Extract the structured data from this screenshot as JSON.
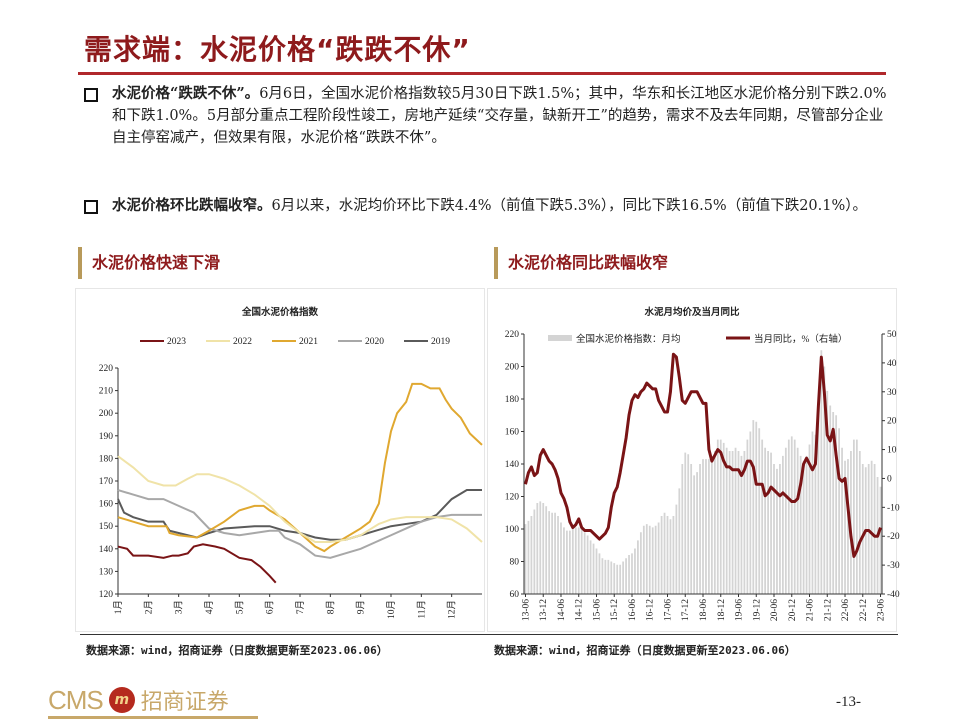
{
  "header": {
    "title": "需求端：水泥价格“跌跌不休”"
  },
  "bullets": [
    {
      "bold": "水泥价格“跌跌不休”。",
      "text": "6月6日，全国水泥价格指数较5月30日下跌1.5%；其中，华东和长江地区水泥价格分别下跌2.0%和下跌1.0%。5月部分重点工程阶段性竣工，房地产延续“交存量，缺新开工”的趋势，需求不及去年同期，尽管部分企业自主停窑减产，但效果有限，水泥价格“跌跌不休”。"
    },
    {
      "bold": "水泥价格环比跌幅收窄。",
      "text": "6月以来，水泥均价环比下跌4.4%（前值下跌5.3%），同比下跌16.5%（前值下跌20.1%）。"
    }
  ],
  "sections": {
    "left": "水泥价格快速下滑",
    "right": "水泥价格同比跌幅收窄"
  },
  "footer": {
    "source_left": "数据来源：wind，招商证券（日度数据更新至2023.06.06）",
    "source_right": "数据来源：wind，招商证券（日度数据更新至2023.06.06）",
    "logo": "CMS 招商证券",
    "page": "-13-"
  },
  "chart_data": [
    {
      "type": "line",
      "title": "全国水泥价格指数",
      "x_ticks": [
        "1月",
        "2月",
        "3月",
        "4月",
        "5月",
        "6月",
        "7月",
        "8月",
        "9月",
        "10月",
        "11月",
        "12月"
      ],
      "xlim": [
        1,
        13
      ],
      "ylim": [
        120,
        220
      ],
      "y_ticks": [
        120,
        130,
        140,
        150,
        160,
        170,
        180,
        190,
        200,
        210,
        220
      ],
      "legend": "top",
      "grid": false,
      "series": [
        {
          "name": "2023",
          "color": "#7a1416",
          "points": [
            [
              1,
              141
            ],
            [
              1.3,
              140
            ],
            [
              1.5,
              137
            ],
            [
              2,
              137
            ],
            [
              2.5,
              136
            ],
            [
              2.8,
              137
            ],
            [
              3,
              137
            ],
            [
              3.3,
              138
            ],
            [
              3.5,
              141
            ],
            [
              3.8,
              142
            ],
            [
              4.2,
              141
            ],
            [
              4.5,
              140
            ],
            [
              5,
              136
            ],
            [
              5.4,
              135
            ],
            [
              5.7,
              132
            ],
            [
              6,
              128
            ],
            [
              6.2,
              125
            ]
          ]
        },
        {
          "name": "2022",
          "color": "#f0e3a8",
          "points": [
            [
              1,
              181
            ],
            [
              1.5,
              176
            ],
            [
              2,
              170
            ],
            [
              2.5,
              168
            ],
            [
              2.9,
              168
            ],
            [
              3.3,
              171
            ],
            [
              3.6,
              173
            ],
            [
              4,
              173
            ],
            [
              4.5,
              171
            ],
            [
              5,
              168
            ],
            [
              5.5,
              164
            ],
            [
              6,
              159
            ],
            [
              6.5,
              152
            ],
            [
              7,
              147
            ],
            [
              7.5,
              143
            ],
            [
              8,
              143
            ],
            [
              8.5,
              144
            ],
            [
              9,
              146
            ],
            [
              9.6,
              151
            ],
            [
              10,
              153
            ],
            [
              10.5,
              154
            ],
            [
              11,
              154
            ],
            [
              11.5,
              154
            ],
            [
              12,
              153
            ],
            [
              12.5,
              149
            ],
            [
              13,
              143
            ]
          ]
        },
        {
          "name": "2021",
          "color": "#e0a830",
          "points": [
            [
              1,
              154
            ],
            [
              1.5,
              152
            ],
            [
              2,
              150
            ],
            [
              2.6,
              150
            ],
            [
              2.7,
              147
            ],
            [
              3,
              146
            ],
            [
              3.6,
              145
            ],
            [
              4,
              148
            ],
            [
              4.5,
              152
            ],
            [
              5,
              157
            ],
            [
              5.5,
              159
            ],
            [
              5.8,
              159
            ],
            [
              6,
              157
            ],
            [
              6.5,
              153
            ],
            [
              7,
              147
            ],
            [
              7.5,
              141
            ],
            [
              7.8,
              139
            ],
            [
              8,
              141
            ],
            [
              8.5,
              145
            ],
            [
              9,
              149
            ],
            [
              9.3,
              152
            ],
            [
              9.6,
              160
            ],
            [
              9.8,
              178
            ],
            [
              10,
              192
            ],
            [
              10.2,
              200
            ],
            [
              10.5,
              205
            ],
            [
              10.7,
              213
            ],
            [
              11,
              213
            ],
            [
              11.3,
              211
            ],
            [
              11.6,
              211
            ],
            [
              11.8,
              206
            ],
            [
              12,
              202
            ],
            [
              12.3,
              198
            ],
            [
              12.6,
              191
            ],
            [
              13,
              186
            ]
          ]
        },
        {
          "name": "2020",
          "color": "#a8a8a8",
          "points": [
            [
              1,
              166
            ],
            [
              1.5,
              164
            ],
            [
              2,
              162
            ],
            [
              2.5,
              162
            ],
            [
              3,
              159
            ],
            [
              3.5,
              156
            ],
            [
              4,
              149
            ],
            [
              4.5,
              147
            ],
            [
              5,
              146
            ],
            [
              5.5,
              147
            ],
            [
              6,
              148
            ],
            [
              6.3,
              148
            ],
            [
              6.5,
              145
            ],
            [
              7,
              142
            ],
            [
              7.5,
              137
            ],
            [
              8,
              136
            ],
            [
              8.5,
              138
            ],
            [
              9,
              140
            ],
            [
              9.5,
              143
            ],
            [
              10,
              146
            ],
            [
              10.5,
              149
            ],
            [
              11,
              152
            ],
            [
              11.5,
              154
            ],
            [
              12,
              155
            ],
            [
              12.5,
              155
            ],
            [
              13,
              155
            ]
          ]
        },
        {
          "name": "2019",
          "color": "#5a5a5a",
          "points": [
            [
              1,
              162
            ],
            [
              1.2,
              156
            ],
            [
              1.5,
              154
            ],
            [
              2,
              152
            ],
            [
              2.5,
              152
            ],
            [
              2.7,
              148
            ],
            [
              3,
              147
            ],
            [
              3.6,
              145
            ],
            [
              4,
              147
            ],
            [
              4.5,
              149
            ],
            [
              5,
              149.5
            ],
            [
              5.5,
              150
            ],
            [
              6,
              150
            ],
            [
              6.5,
              148
            ],
            [
              7,
              147
            ],
            [
              7.5,
              145
            ],
            [
              8,
              144
            ],
            [
              8.5,
              144
            ],
            [
              9,
              146
            ],
            [
              9.5,
              148
            ],
            [
              10,
              150
            ],
            [
              10.5,
              151
            ],
            [
              11,
              152
            ],
            [
              11.5,
              155
            ],
            [
              12,
              162
            ],
            [
              12.5,
              166
            ],
            [
              13,
              166
            ]
          ]
        }
      ]
    },
    {
      "type": "bar+line",
      "title": "水泥月均价及当月同比",
      "start_month": "2013-06",
      "x_ticks": [
        "13-06",
        "13-12",
        "14-06",
        "14-12",
        "15-06",
        "15-12",
        "16-06",
        "16-12",
        "17-06",
        "17-12",
        "18-06",
        "18-12",
        "19-06",
        "19-12",
        "20-06",
        "20-12",
        "21-06",
        "21-12",
        "22-06",
        "22-12",
        "23-06"
      ],
      "ylim_left": [
        60,
        220
      ],
      "y_ticks_left": [
        60,
        80,
        100,
        120,
        140,
        160,
        180,
        200,
        220
      ],
      "ylim_right": [
        -40,
        50
      ],
      "y_ticks_right": [
        -40,
        -30,
        -20,
        -10,
        0,
        10,
        20,
        30,
        40,
        50
      ],
      "legend": "top",
      "bar_series": {
        "name": "全国水泥价格指数：月均",
        "color": "#d4d4d4",
        "values": [
          103,
          105,
          108,
          112,
          116,
          117,
          116,
          114,
          111,
          110,
          110,
          108,
          104,
          101,
          99,
          99,
          100,
          101,
          101,
          100,
          98,
          96,
          93,
          91,
          88,
          85,
          82,
          81,
          81,
          80,
          79,
          78,
          78,
          80,
          82,
          84,
          85,
          88,
          93,
          98,
          102,
          103,
          102,
          101,
          102,
          104,
          108,
          110,
          108,
          106,
          108,
          115,
          125,
          140,
          147,
          146,
          140,
          133,
          135,
          140,
          143,
          143,
          143,
          145,
          148,
          155,
          155,
          153,
          150,
          148,
          148,
          150,
          148,
          145,
          148,
          155,
          160,
          167,
          166,
          162,
          155,
          150,
          148,
          147,
          140,
          137,
          140,
          145,
          150,
          155,
          157,
          155,
          150,
          145,
          142,
          145,
          152,
          160,
          158,
          175,
          210,
          200,
          185,
          176,
          172,
          170,
          162,
          150,
          142,
          143,
          148,
          155,
          155,
          148,
          140,
          138,
          140,
          142,
          140,
          132,
          126
        ]
      },
      "line_series": {
        "name": "当月同比，%（右轴）",
        "color": "#7a1416",
        "values": [
          -2,
          2,
          4,
          1,
          2,
          8,
          10,
          8,
          6,
          5,
          3,
          0,
          -5,
          -7,
          -10,
          -15,
          -17,
          -16,
          -14,
          -17,
          -18,
          -18,
          -18,
          -19,
          -20,
          -21,
          -20,
          -19,
          -17,
          -10,
          -5,
          -3,
          2,
          8,
          14,
          22,
          27,
          29,
          28,
          30,
          31,
          33,
          32,
          31,
          31,
          27,
          25,
          23,
          23,
          30,
          43,
          42,
          35,
          27,
          26,
          28,
          30,
          30,
          30,
          28,
          26,
          26,
          10,
          6,
          8,
          10,
          9,
          6,
          4,
          4,
          3,
          3,
          3,
          1,
          3,
          6,
          6,
          4,
          -2,
          -2,
          -2,
          -6,
          -5,
          -3,
          -4,
          -5,
          -6,
          -5,
          -6,
          -7,
          -8,
          -8,
          -7,
          -2,
          5,
          7,
          5,
          3,
          5,
          25,
          42,
          30,
          15,
          13,
          17,
          8,
          0,
          -1,
          0,
          -10,
          -20,
          -27,
          -25,
          -22,
          -20,
          -18,
          -18,
          -19,
          -20,
          -20,
          -17
        ]
      }
    }
  ]
}
